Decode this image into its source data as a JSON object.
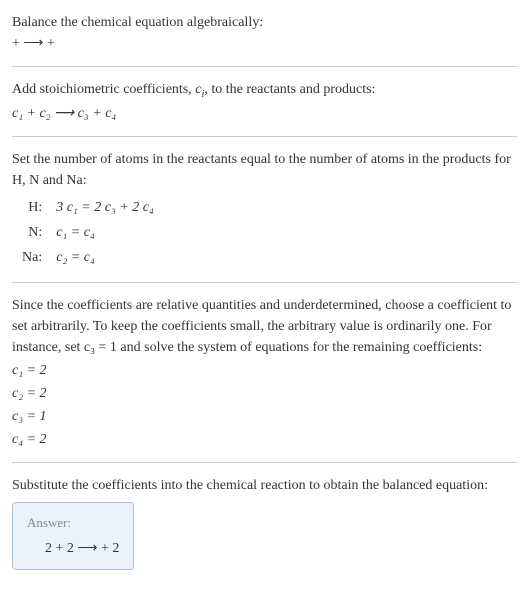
{
  "colors": {
    "text": "#333333",
    "divider": "#cccccc",
    "answer_border": "#a8c4e0",
    "answer_bg": "#eaf2fb",
    "answer_label": "#888888",
    "background": "#ffffff"
  },
  "typography": {
    "body_fontsize": 14,
    "answer_label_fontsize": 13,
    "font_family": "Georgia, 'Times New Roman', serif"
  },
  "intro": {
    "line1": "Balance the chemical equation algebraically:",
    "line2": " +  ⟶  + "
  },
  "stoich": {
    "line1_prefix": "Add stoichiometric coefficients, ",
    "line1_ci": "c",
    "line1_ci_sub": "i",
    "line1_suffix": ", to the reactants and products:",
    "equation": "c₁  + c₂  ⟶ c₃  + c₄"
  },
  "atoms": {
    "intro": "Set the number of atoms in the reactants equal to the number of atoms in the products for H, N and Na:",
    "rows": [
      {
        "label": "H:",
        "eq": "3 c₁ = 2 c₃ + 2 c₄"
      },
      {
        "label": "N:",
        "eq": "c₁ = c₄"
      },
      {
        "label": "Na:",
        "eq": "c₂ = c₄"
      }
    ]
  },
  "solve": {
    "intro": "Since the coefficients are relative quantities and underdetermined, choose a coefficient to set arbitrarily. To keep the coefficients small, the arbitrary value is ordinarily one. For instance, set c₃ = 1 and solve the system of equations for the remaining coefficients:",
    "coeffs": [
      "c₁ = 2",
      "c₂ = 2",
      "c₃ = 1",
      "c₄ = 2"
    ]
  },
  "final": {
    "intro": "Substitute the coefficients into the chemical reaction to obtain the balanced equation:",
    "answer_label": "Answer:",
    "answer_equation": "2  + 2  ⟶  + 2"
  }
}
